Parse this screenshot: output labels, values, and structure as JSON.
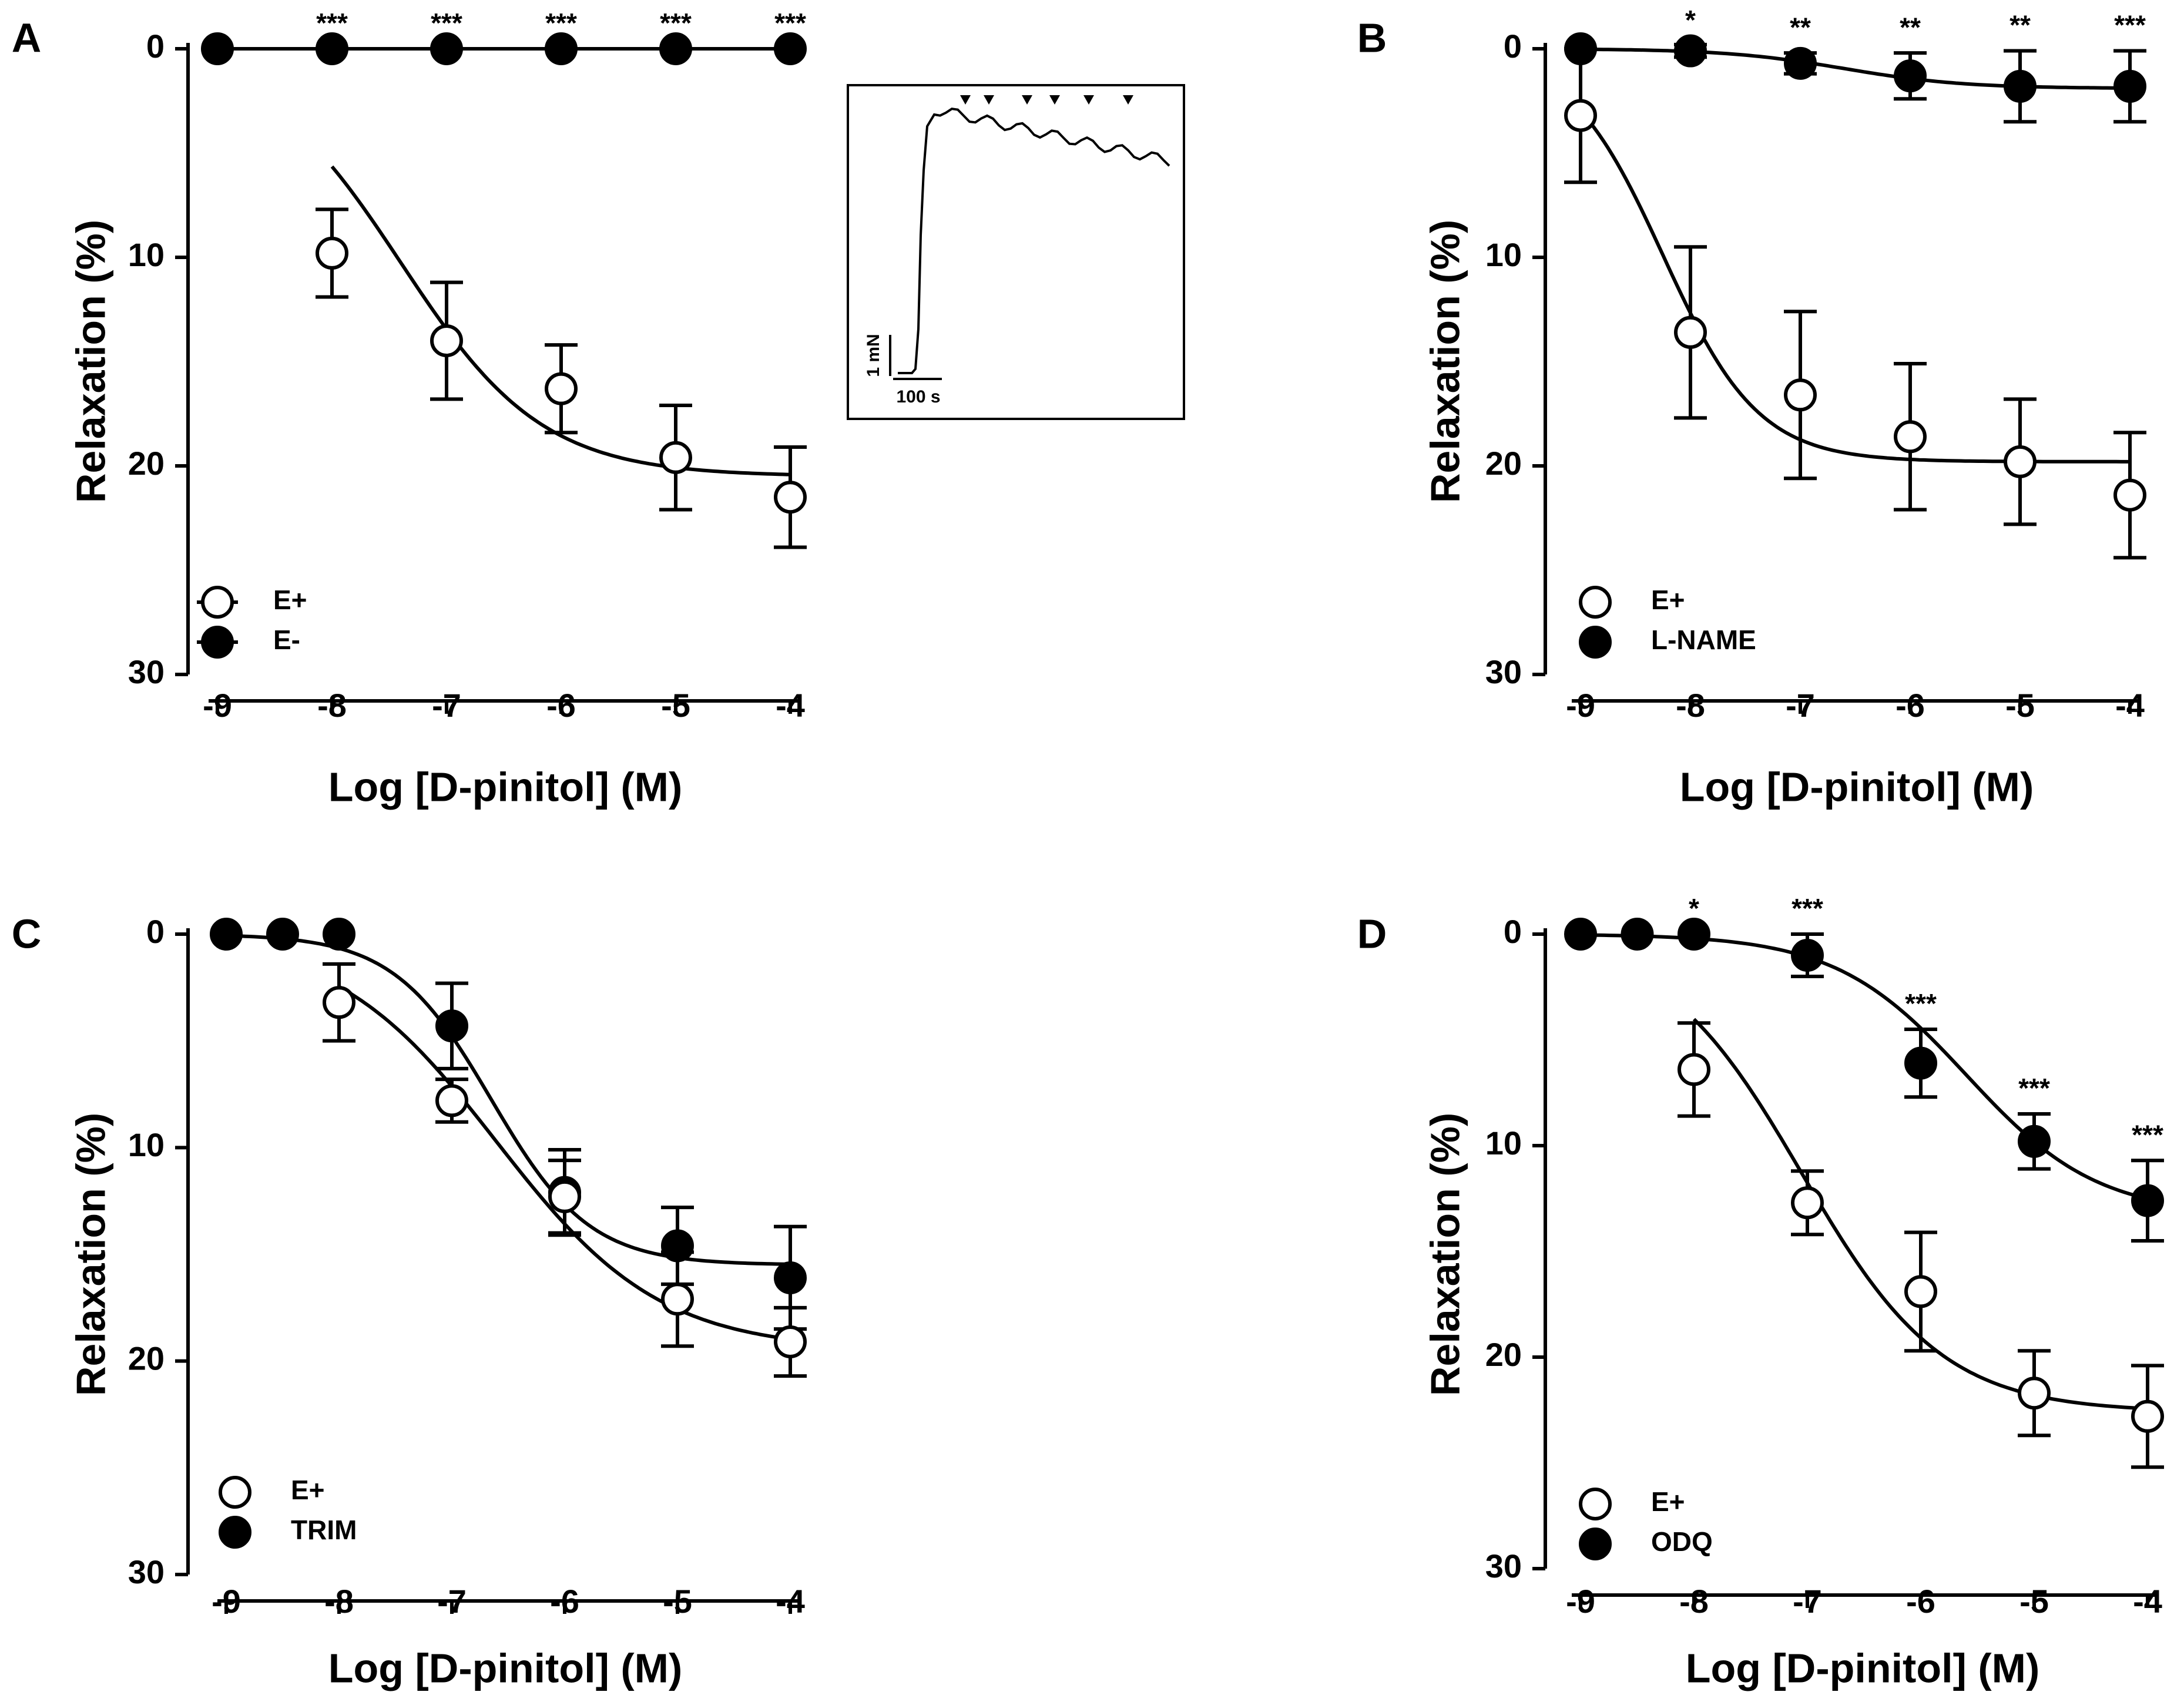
{
  "chart_data": [
    {
      "panel": "A",
      "type": "scatter",
      "xlabel": "Log [D-pinitol] (M)",
      "ylabel": "Relaxation  (%)",
      "ylim": [
        0,
        30
      ],
      "y_inverted": true,
      "xlim": [
        -9,
        -4
      ],
      "xticks": [
        -9,
        -8,
        -7,
        -6,
        -5,
        -4
      ],
      "yticks": [
        0,
        10,
        20,
        30
      ],
      "legend_position": "bottom-left",
      "series": [
        {
          "name": "E+",
          "marker": "open",
          "x": [
            -8,
            -7,
            -6,
            -5,
            -4
          ],
          "y": [
            9.8,
            14.0,
            16.3,
            19.6,
            21.5
          ],
          "err": [
            2.1,
            2.8,
            2.1,
            2.5,
            2.4
          ],
          "fit": {
            "bottom": 0,
            "top": 20.5,
            "logEC50": -7.4,
            "hill": 0.7
          }
        },
        {
          "name": "E-",
          "marker": "filled",
          "x": [
            -9,
            -8,
            -7,
            -6,
            -5,
            -4
          ],
          "y": [
            0,
            0,
            0,
            0,
            0,
            0
          ],
          "err": [
            0,
            0,
            0,
            0,
            0,
            0
          ],
          "fit": {
            "bottom": 0,
            "top": 0,
            "logEC50": -7,
            "hill": 1
          }
        }
      ],
      "significance": [
        {
          "x": -8,
          "label": "***"
        },
        {
          "x": -7,
          "label": "***"
        },
        {
          "x": -6,
          "label": "***"
        },
        {
          "x": -5,
          "label": "***"
        },
        {
          "x": -4,
          "label": "***"
        }
      ],
      "inset": {
        "scale_y_label": "1 mN",
        "scale_x_label": "100 s"
      }
    },
    {
      "panel": "B",
      "type": "scatter",
      "xlabel": "Log [D-pinitol] (M)",
      "ylabel": "Relaxation  (%)",
      "ylim": [
        0,
        30
      ],
      "y_inverted": true,
      "xlim": [
        -9,
        -4
      ],
      "xticks": [
        -9,
        -8,
        -7,
        -6,
        -5,
        -4
      ],
      "yticks": [
        0,
        10,
        20,
        30
      ],
      "legend_position": "bottom-left",
      "series": [
        {
          "name": "E+",
          "marker": "open",
          "x": [
            -9,
            -8,
            -7,
            -6,
            -5,
            -4
          ],
          "y": [
            3.2,
            13.6,
            16.6,
            18.6,
            19.8,
            21.4
          ],
          "err": [
            3.2,
            4.1,
            4.0,
            3.5,
            3.0,
            3.0
          ],
          "fit": {
            "bottom": 0,
            "top": 19.8,
            "logEC50": -8.25,
            "hill": 1.0
          }
        },
        {
          "name": "L-NAME",
          "marker": "filled",
          "x": [
            -9,
            -8,
            -7,
            -6,
            -5,
            -4
          ],
          "y": [
            0,
            0.1,
            0.7,
            1.3,
            1.8,
            1.8
          ],
          "err": [
            0,
            0.3,
            0.5,
            1.1,
            1.7,
            1.7
          ],
          "fit": {
            "bottom": 0,
            "top": 1.9,
            "logEC50": -6.6,
            "hill": 0.8
          }
        }
      ],
      "significance": [
        {
          "x": -8,
          "label": "*"
        },
        {
          "x": -7,
          "label": "**"
        },
        {
          "x": -6,
          "label": "**"
        },
        {
          "x": -5,
          "label": "**"
        },
        {
          "x": -4,
          "label": "***"
        }
      ]
    },
    {
      "panel": "C",
      "type": "scatter",
      "xlabel": "Log [D-pinitol] (M)",
      "ylabel": "Relaxation  (%)",
      "ylim": [
        0,
        30
      ],
      "y_inverted": true,
      "xlim": [
        -9,
        -4
      ],
      "xticks": [
        -9,
        -8,
        -7,
        -6,
        -5,
        -4
      ],
      "yticks": [
        0,
        10,
        20,
        30
      ],
      "legend_position": "bottom-left",
      "series": [
        {
          "name": "E+",
          "marker": "open",
          "x": [
            -8,
            -7,
            -6,
            -5,
            -4
          ],
          "y": [
            3.2,
            7.8,
            12.3,
            17.1,
            19.1
          ],
          "err": [
            1.8,
            1.0,
            1.7,
            2.2,
            1.6
          ],
          "fit": {
            "bottom": 0,
            "top": 19.5,
            "logEC50": -6.6,
            "hill": 0.6
          }
        },
        {
          "name": "TRIM",
          "marker": "filled",
          "x": [
            -9,
            -8.5,
            -8,
            -7,
            -6,
            -5,
            -4
          ],
          "y": [
            0,
            0,
            0,
            4.3,
            12.1,
            14.6,
            16.1
          ],
          "err": [
            0,
            0,
            0,
            2.0,
            2.0,
            1.8,
            2.4
          ],
          "fit": {
            "bottom": 0,
            "top": 15.5,
            "logEC50": -6.65,
            "hill": 1.0
          }
        }
      ],
      "significance": []
    },
    {
      "panel": "D",
      "type": "scatter",
      "xlabel": "Log [D-pinitol] (M)",
      "ylabel": "Relaxation  (%)",
      "ylim": [
        0,
        30
      ],
      "y_inverted": true,
      "xlim": [
        -9,
        -4
      ],
      "xticks": [
        -9,
        -8,
        -7,
        -6,
        -5,
        -4
      ],
      "yticks": [
        0,
        10,
        20,
        30
      ],
      "legend_position": "bottom-left",
      "series": [
        {
          "name": "E+",
          "marker": "open",
          "x": [
            -8,
            -7,
            -6,
            -5,
            -4
          ],
          "y": [
            6.4,
            12.7,
            16.9,
            21.7,
            22.8
          ],
          "err": [
            2.2,
            1.5,
            2.8,
            2.0,
            2.4
          ],
          "fit": {
            "bottom": 0,
            "top": 22.6,
            "logEC50": -7.05,
            "hill": 0.7
          }
        },
        {
          "name": "ODQ",
          "marker": "filled",
          "x": [
            -9,
            -8.5,
            -8,
            -7,
            -6,
            -5,
            -4
          ],
          "y": [
            0,
            0,
            0,
            1.0,
            6.1,
            9.8,
            12.6
          ],
          "err": [
            0,
            0,
            0,
            1.0,
            1.6,
            1.3,
            1.9
          ],
          "fit": {
            "bottom": 0,
            "top": 13.3,
            "logEC50": -5.6,
            "hill": 0.75
          }
        }
      ],
      "significance": [
        {
          "x": -8,
          "label": "*"
        },
        {
          "x": -7,
          "label": "***"
        },
        {
          "x": -6,
          "label": "***"
        },
        {
          "x": -5,
          "label": "***"
        },
        {
          "x": -4,
          "label": "***"
        }
      ]
    }
  ]
}
